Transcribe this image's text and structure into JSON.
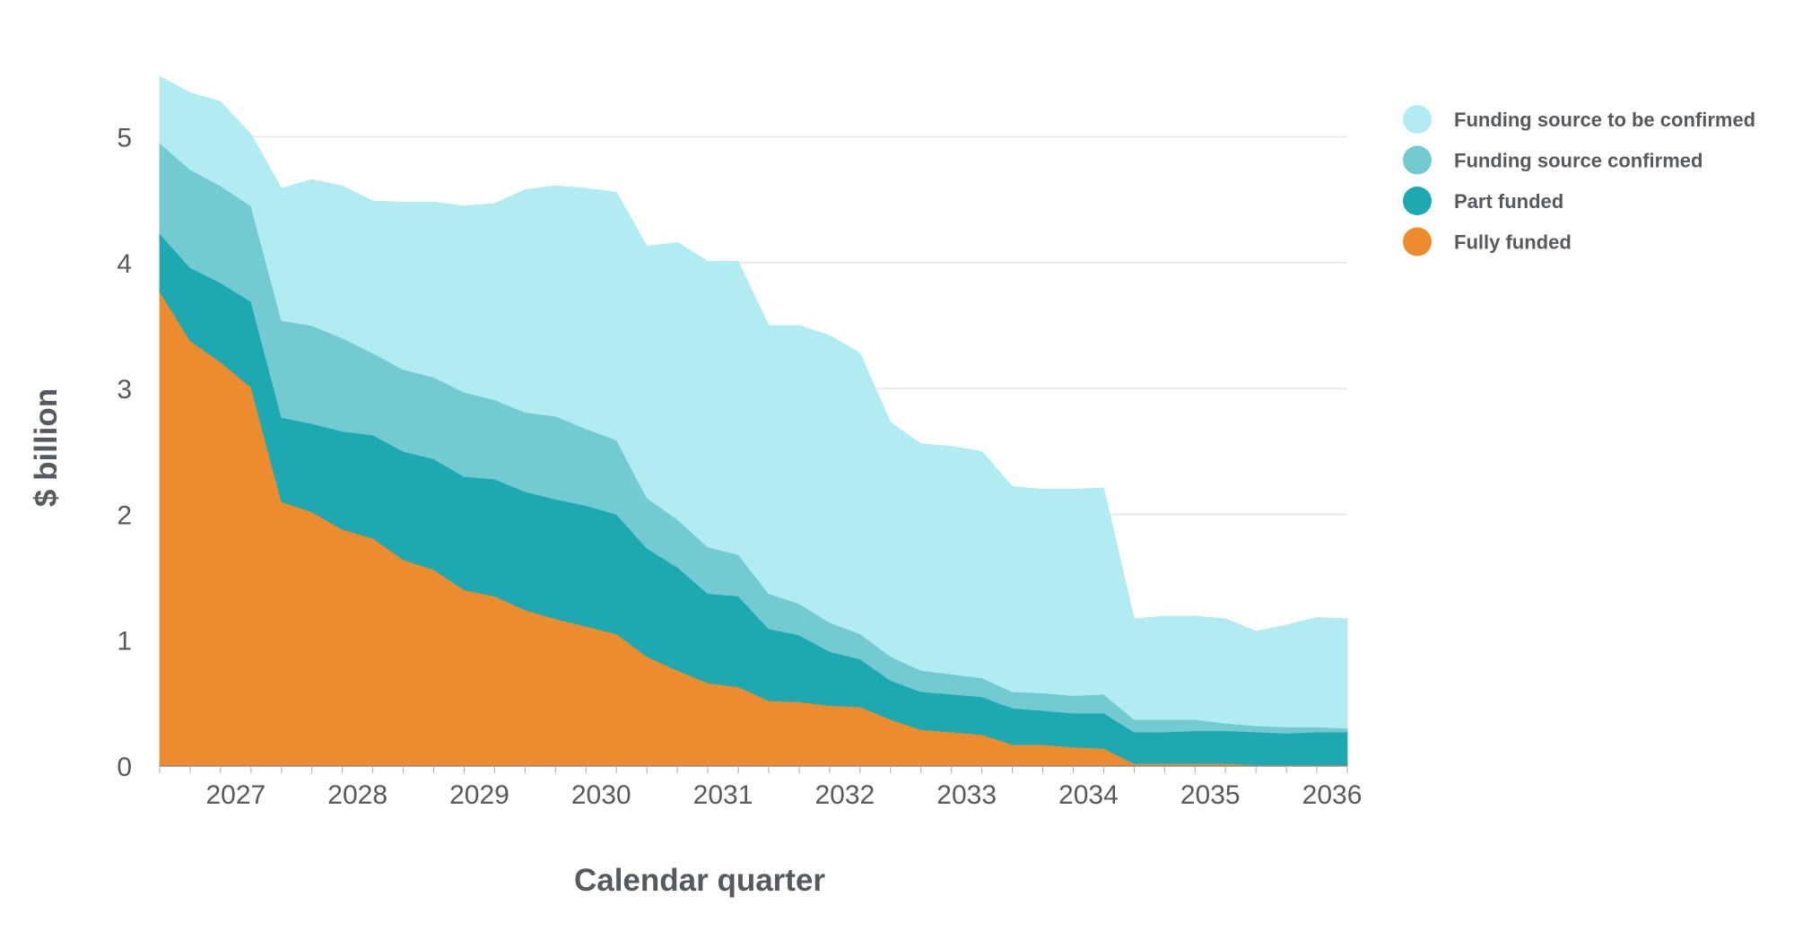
{
  "chart_data": {
    "type": "area",
    "stacked": true,
    "title": "",
    "xlabel": "Calendar quarter",
    "ylabel": "$ billion",
    "ylim": [
      0,
      5.5
    ],
    "yticks": [
      0,
      1,
      2,
      3,
      4,
      5
    ],
    "xticks": [
      "2027",
      "2028",
      "2029",
      "2030",
      "2031",
      "2032",
      "2033",
      "2034",
      "2035",
      "2036"
    ],
    "x": [
      "2026 Q3",
      "2026 Q4",
      "2027 Q1",
      "2027 Q2",
      "2027 Q3",
      "2027 Q4",
      "2028 Q1",
      "2028 Q2",
      "2028 Q3",
      "2028 Q4",
      "2029 Q1",
      "2029 Q2",
      "2029 Q3",
      "2029 Q4",
      "2030 Q1",
      "2030 Q2",
      "2030 Q3",
      "2030 Q4",
      "2031 Q1",
      "2031 Q2",
      "2031 Q3",
      "2031 Q4",
      "2032 Q1",
      "2032 Q2",
      "2032 Q3",
      "2032 Q4",
      "2033 Q1",
      "2033 Q2",
      "2033 Q3",
      "2033 Q4",
      "2034 Q1",
      "2034 Q2",
      "2034 Q3",
      "2034 Q4",
      "2035 Q1",
      "2035 Q2",
      "2035 Q3",
      "2035 Q4",
      "2036 Q1",
      "2036 Q2"
    ],
    "grid": true,
    "legend_position": "top-right",
    "series": [
      {
        "name": "Fully funded",
        "color": "#ed8c2e",
        "values": [
          3.77,
          3.38,
          3.21,
          3.01,
          2.1,
          2.02,
          1.88,
          1.81,
          1.64,
          1.56,
          1.4,
          1.35,
          1.24,
          1.17,
          1.11,
          1.05,
          0.87,
          0.76,
          0.66,
          0.63,
          0.52,
          0.51,
          0.48,
          0.47,
          0.37,
          0.29,
          0.27,
          0.25,
          0.17,
          0.17,
          0.15,
          0.14,
          0.02,
          0.02,
          0.02,
          0.02,
          0.01,
          0.01,
          0.01,
          0.01
        ]
      },
      {
        "name": "Part funded",
        "color": "#1da8b2",
        "values": [
          0.46,
          0.58,
          0.63,
          0.68,
          0.67,
          0.7,
          0.78,
          0.82,
          0.86,
          0.88,
          0.9,
          0.93,
          0.94,
          0.95,
          0.96,
          0.95,
          0.86,
          0.82,
          0.71,
          0.72,
          0.57,
          0.53,
          0.43,
          0.38,
          0.31,
          0.3,
          0.3,
          0.3,
          0.29,
          0.27,
          0.27,
          0.28,
          0.25,
          0.25,
          0.26,
          0.26,
          0.26,
          0.25,
          0.26,
          0.26
        ]
      },
      {
        "name": "Funding source confirmed",
        "color": "#73cad1",
        "values": [
          0.72,
          0.78,
          0.77,
          0.76,
          0.77,
          0.78,
          0.74,
          0.65,
          0.65,
          0.65,
          0.67,
          0.63,
          0.63,
          0.66,
          0.61,
          0.59,
          0.4,
          0.38,
          0.37,
          0.33,
          0.28,
          0.25,
          0.23,
          0.2,
          0.19,
          0.17,
          0.16,
          0.15,
          0.13,
          0.14,
          0.14,
          0.15,
          0.1,
          0.1,
          0.09,
          0.06,
          0.05,
          0.05,
          0.04,
          0.03
        ]
      },
      {
        "name": "Funding source to be confirmed",
        "color": "#b0ecf1",
        "values": [
          0.53,
          0.61,
          0.67,
          0.57,
          1.05,
          1.16,
          1.21,
          1.21,
          1.33,
          1.39,
          1.48,
          1.56,
          1.77,
          1.83,
          1.91,
          1.97,
          2.0,
          2.2,
          2.27,
          2.33,
          2.13,
          2.21,
          2.28,
          2.23,
          1.86,
          1.8,
          1.81,
          1.8,
          1.63,
          1.62,
          1.64,
          1.64,
          0.8,
          0.82,
          0.82,
          0.83,
          0.75,
          0.81,
          0.87,
          0.87
        ]
      }
    ]
  }
}
